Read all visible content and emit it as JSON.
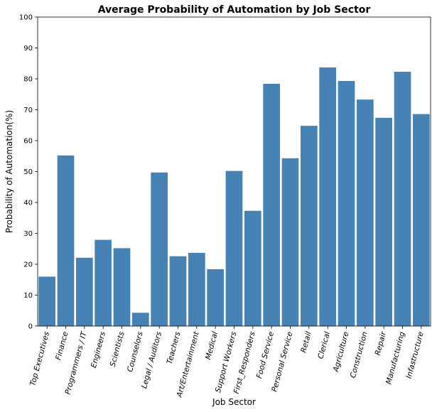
{
  "chart_data": {
    "type": "bar",
    "title": "Average Probability of Automation by Job Sector",
    "xlabel": "Job Sector",
    "ylabel": "Probability of Automation(%)",
    "ylim": [
      0,
      100
    ],
    "yticks": [
      "0",
      "10",
      "20",
      "30",
      "40",
      "50",
      "60",
      "70",
      "80",
      "90",
      "100"
    ],
    "grid": false,
    "bar_color": "#4682b4",
    "categories": [
      "Top Executives",
      "Finance",
      "Programmers / IT",
      "Engineers",
      "Scientists",
      "Counselors",
      "Legal / Auditors",
      "Teachers",
      "Art/Entertainment",
      "Medical",
      "Support Workers",
      "First_Responders",
      "Food Service",
      "Personal Service",
      "Retail",
      "Clerical",
      "Agriculture",
      "Construction",
      "Repair",
      "Manufacturing",
      "Infastructure"
    ],
    "values": [
      16.0,
      55.2,
      22.1,
      27.9,
      25.2,
      4.3,
      49.7,
      22.6,
      23.7,
      18.4,
      50.2,
      37.3,
      78.4,
      54.3,
      64.8,
      83.7,
      79.3,
      73.3,
      67.4,
      82.3,
      68.6
    ]
  }
}
